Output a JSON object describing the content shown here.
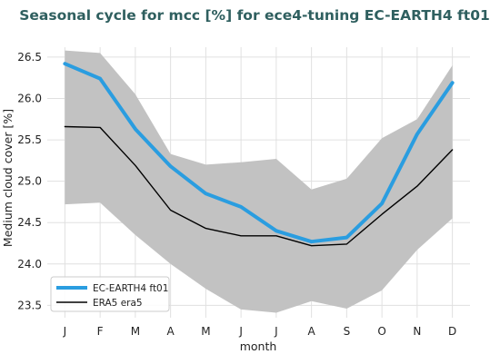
{
  "chart_data": {
    "type": "line",
    "title": "Seasonal cycle for mcc [%] for ece4-tuning EC-EARTH4 ft01",
    "xlabel": "month",
    "ylabel": "Medium cloud cover [%]",
    "categories": [
      "J",
      "F",
      "M",
      "A",
      "M",
      "J",
      "J",
      "A",
      "S",
      "O",
      "N",
      "D"
    ],
    "ylim": [
      23.35,
      26.62
    ],
    "yticks": [
      23.5,
      24.0,
      24.5,
      25.0,
      25.5,
      26.0,
      26.5
    ],
    "ytick_labels": [
      "23.5",
      "24.0",
      "24.5",
      "25.0",
      "25.5",
      "26.0",
      "26.5"
    ],
    "grid": true,
    "legend_position": "lower-left",
    "band": {
      "color": "#c2c2c2",
      "upper": [
        26.58,
        26.55,
        26.05,
        25.33,
        25.2,
        25.23,
        25.27,
        24.9,
        25.03,
        25.52,
        25.75,
        26.4
      ],
      "lower": [
        24.72,
        24.74,
        24.35,
        24.0,
        23.7,
        23.45,
        23.41,
        23.55,
        23.46,
        23.68,
        24.17,
        24.55
      ]
    },
    "series": [
      {
        "name": "EC-EARTH4 ft01",
        "color": "#2a9de0",
        "values": [
          26.42,
          26.24,
          25.63,
          25.18,
          24.85,
          24.69,
          24.4,
          24.27,
          24.32,
          24.73,
          25.57,
          26.19
        ]
      },
      {
        "name": "ERA5 era5",
        "color": "#000000",
        "values": [
          25.66,
          25.65,
          25.19,
          24.65,
          24.43,
          24.34,
          24.34,
          24.22,
          24.24,
          24.6,
          24.94,
          25.38
        ]
      }
    ]
  }
}
